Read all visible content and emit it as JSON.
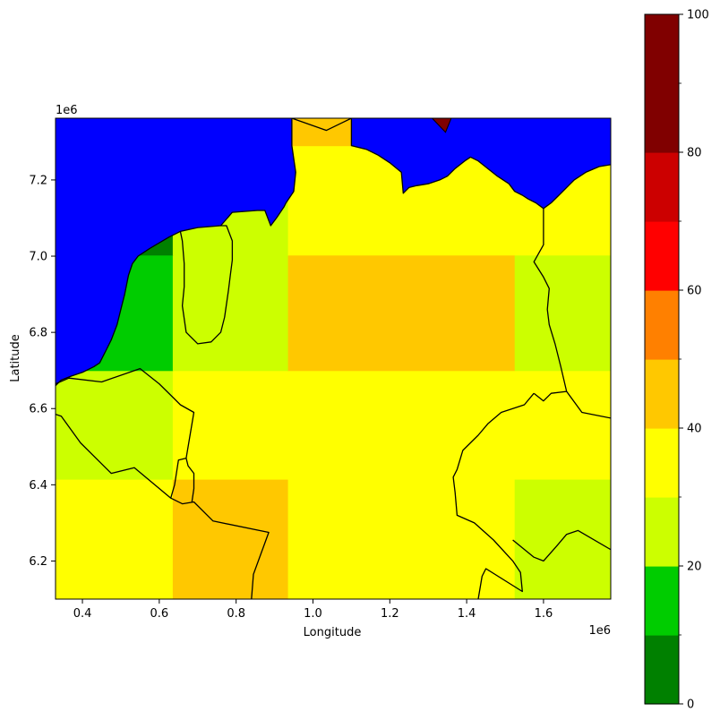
{
  "chart_data": {
    "type": "heatmap",
    "xlabel": "Longitude",
    "ylabel": "Latitude",
    "x_offset_label": "1e6",
    "y_offset_label": "1e6",
    "xlim": [
      0.33,
      1.775
    ],
    "ylim": [
      6.1,
      7.362
    ],
    "x_ticks": [
      0.4,
      0.6,
      0.8,
      1.0,
      1.2,
      1.4,
      1.6
    ],
    "x_tick_labels": [
      "0.4",
      "0.6",
      "0.8",
      "1.0",
      "1.2",
      "1.4",
      "1.6"
    ],
    "y_ticks": [
      6.2,
      6.4,
      6.6,
      6.8,
      7.0,
      7.2
    ],
    "y_tick_labels": [
      "6.2",
      "6.4",
      "6.6",
      "6.8",
      "7.0",
      "7.2"
    ],
    "grid": false,
    "water_color": "#0000ff",
    "border_color": "#000000",
    "colorbar": {
      "range": [
        0,
        100
      ],
      "tick_values": [
        0,
        20,
        40,
        60,
        80,
        100
      ],
      "tick_labels": [
        "0",
        "20",
        "40",
        "60",
        "80",
        "100"
      ],
      "minor_tick_values": [
        10,
        30,
        50,
        70,
        90
      ],
      "bins": [
        {
          "from": 0,
          "to": 10,
          "color": "#008000"
        },
        {
          "from": 10,
          "to": 20,
          "color": "#00cc00"
        },
        {
          "from": 20,
          "to": 30,
          "color": "#ccff00"
        },
        {
          "from": 30,
          "to": 40,
          "color": "#ffff00"
        },
        {
          "from": 40,
          "to": 50,
          "color": "#ffc800"
        },
        {
          "from": 50,
          "to": 60,
          "color": "#ff8000"
        },
        {
          "from": 60,
          "to": 70,
          "color": "#ff0000"
        },
        {
          "from": 70,
          "to": 80,
          "color": "#cc0000"
        },
        {
          "from": 80,
          "to": 90,
          "color": "#800000"
        },
        {
          "from": 90,
          "to": 100,
          "color": "#800000"
        }
      ]
    },
    "cells": [
      {
        "x0": 0.33,
        "x1": 0.635,
        "y0": 6.1,
        "y1": 6.415,
        "color": "#ffff00"
      },
      {
        "x0": 0.635,
        "x1": 0.935,
        "y0": 6.1,
        "y1": 6.415,
        "color": "#ffc800"
      },
      {
        "x0": 0.935,
        "x1": 1.525,
        "y0": 6.1,
        "y1": 6.415,
        "color": "#ffff00"
      },
      {
        "x0": 1.525,
        "x1": 1.775,
        "y0": 6.1,
        "y1": 6.415,
        "color": "#ccff00"
      },
      {
        "x0": 0.33,
        "x1": 0.635,
        "y0": 6.415,
        "y1": 6.7,
        "color": "#ccff00"
      },
      {
        "x0": 0.635,
        "x1": 1.775,
        "y0": 6.415,
        "y1": 6.7,
        "color": "#ffff00"
      },
      {
        "x0": 0.33,
        "x1": 0.635,
        "y0": 6.7,
        "y1": 7.003,
        "color": "#00cc00"
      },
      {
        "x0": 0.635,
        "x1": 0.935,
        "y0": 6.7,
        "y1": 7.003,
        "color": "#ccff00"
      },
      {
        "x0": 0.935,
        "x1": 1.525,
        "y0": 6.7,
        "y1": 7.003,
        "color": "#ffc800"
      },
      {
        "x0": 1.525,
        "x1": 1.775,
        "y0": 6.7,
        "y1": 7.003,
        "color": "#ccff00"
      },
      {
        "x0": 0.33,
        "x1": 0.635,
        "y0": 7.003,
        "y1": 7.29,
        "color": "#008000"
      },
      {
        "x0": 0.635,
        "x1": 0.935,
        "y0": 7.003,
        "y1": 7.29,
        "color": "#ccff00"
      },
      {
        "x0": 0.935,
        "x1": 1.775,
        "y0": 7.003,
        "y1": 7.29,
        "color": "#ffff00"
      },
      {
        "x0": 0.33,
        "x1": 0.945,
        "y0": 7.29,
        "y1": 7.362,
        "color": "#ccff00"
      },
      {
        "x0": 0.945,
        "x1": 1.1,
        "y0": 7.29,
        "y1": 7.362,
        "color": "#ffc800"
      },
      {
        "x0": 1.1,
        "x1": 1.775,
        "y0": 7.29,
        "y1": 7.362,
        "color": "#ffff00"
      }
    ],
    "water_polygons": [
      [
        [
          0.33,
          7.362
        ],
        [
          0.945,
          7.362
        ],
        [
          0.945,
          7.29
        ],
        [
          0.955,
          7.22
        ],
        [
          0.95,
          7.17
        ],
        [
          0.93,
          7.14
        ],
        [
          0.925,
          7.13
        ],
        [
          0.905,
          7.1
        ],
        [
          0.89,
          7.08
        ],
        [
          0.875,
          7.12
        ],
        [
          0.855,
          7.12
        ],
        [
          0.79,
          7.115
        ],
        [
          0.76,
          7.08
        ],
        [
          0.7,
          7.075
        ],
        [
          0.655,
          7.065
        ],
        [
          0.625,
          7.05
        ],
        [
          0.575,
          7.02
        ],
        [
          0.545,
          7.0
        ],
        [
          0.53,
          6.98
        ],
        [
          0.52,
          6.95
        ],
        [
          0.51,
          6.9
        ],
        [
          0.5,
          6.86
        ],
        [
          0.49,
          6.82
        ],
        [
          0.475,
          6.78
        ],
        [
          0.46,
          6.75
        ],
        [
          0.445,
          6.72
        ],
        [
          0.43,
          6.71
        ],
        [
          0.4,
          6.695
        ],
        [
          0.37,
          6.685
        ],
        [
          0.345,
          6.675
        ],
        [
          0.33,
          6.66
        ]
      ],
      [
        [
          1.1,
          7.362
        ],
        [
          1.775,
          7.362
        ],
        [
          1.775,
          7.24
        ],
        [
          1.745,
          7.235
        ],
        [
          1.71,
          7.22
        ],
        [
          1.68,
          7.2
        ],
        [
          1.66,
          7.18
        ],
        [
          1.64,
          7.16
        ],
        [
          1.62,
          7.14
        ],
        [
          1.6,
          7.125
        ],
        [
          1.58,
          7.14
        ],
        [
          1.56,
          7.15
        ],
        [
          1.545,
          7.16
        ],
        [
          1.525,
          7.17
        ],
        [
          1.51,
          7.19
        ],
        [
          1.48,
          7.21
        ],
        [
          1.455,
          7.23
        ],
        [
          1.43,
          7.25
        ],
        [
          1.41,
          7.26
        ],
        [
          1.395,
          7.25
        ],
        [
          1.37,
          7.23
        ],
        [
          1.35,
          7.21
        ],
        [
          1.33,
          7.2
        ],
        [
          1.3,
          7.19
        ],
        [
          1.27,
          7.185
        ],
        [
          1.25,
          7.18
        ],
        [
          1.24,
          7.17
        ],
        [
          1.235,
          7.165
        ],
        [
          1.23,
          7.22
        ],
        [
          1.2,
          7.245
        ],
        [
          1.17,
          7.265
        ],
        [
          1.14,
          7.28
        ],
        [
          1.1,
          7.29
        ]
      ]
    ],
    "red_spike": [
      [
        1.31,
        7.362
      ],
      [
        1.36,
        7.362
      ],
      [
        1.345,
        7.325
      ]
    ],
    "borders": [
      [
        [
          0.33,
          6.66
        ],
        [
          0.345,
          6.675
        ],
        [
          0.37,
          6.685
        ],
        [
          0.4,
          6.695
        ],
        [
          0.43,
          6.71
        ],
        [
          0.445,
          6.72
        ],
        [
          0.46,
          6.75
        ],
        [
          0.475,
          6.78
        ],
        [
          0.49,
          6.82
        ],
        [
          0.5,
          6.86
        ],
        [
          0.51,
          6.9
        ],
        [
          0.52,
          6.95
        ],
        [
          0.53,
          6.98
        ],
        [
          0.545,
          7.0
        ],
        [
          0.575,
          7.02
        ],
        [
          0.625,
          7.05
        ],
        [
          0.655,
          7.065
        ],
        [
          0.7,
          7.075
        ],
        [
          0.76,
          7.08
        ],
        [
          0.79,
          7.115
        ],
        [
          0.855,
          7.12
        ],
        [
          0.875,
          7.12
        ],
        [
          0.89,
          7.08
        ],
        [
          0.905,
          7.1
        ],
        [
          0.925,
          7.13
        ],
        [
          0.93,
          7.14
        ],
        [
          0.95,
          7.17
        ],
        [
          0.955,
          7.22
        ],
        [
          0.945,
          7.29
        ],
        [
          0.945,
          7.362
        ]
      ],
      [
        [
          1.1,
          7.362
        ],
        [
          1.1,
          7.29
        ],
        [
          1.14,
          7.28
        ],
        [
          1.17,
          7.265
        ],
        [
          1.2,
          7.245
        ],
        [
          1.23,
          7.22
        ],
        [
          1.235,
          7.165
        ],
        [
          1.24,
          7.17
        ],
        [
          1.25,
          7.18
        ],
        [
          1.27,
          7.185
        ],
        [
          1.3,
          7.19
        ],
        [
          1.33,
          7.2
        ],
        [
          1.35,
          7.21
        ],
        [
          1.37,
          7.23
        ],
        [
          1.395,
          7.25
        ],
        [
          1.41,
          7.26
        ],
        [
          1.43,
          7.25
        ],
        [
          1.455,
          7.23
        ],
        [
          1.48,
          7.21
        ],
        [
          1.51,
          7.19
        ],
        [
          1.525,
          7.17
        ],
        [
          1.545,
          7.16
        ],
        [
          1.56,
          7.15
        ],
        [
          1.58,
          7.14
        ],
        [
          1.6,
          7.125
        ],
        [
          1.62,
          7.14
        ],
        [
          1.64,
          7.16
        ],
        [
          1.66,
          7.18
        ],
        [
          1.68,
          7.2
        ],
        [
          1.71,
          7.22
        ],
        [
          1.745,
          7.235
        ],
        [
          1.775,
          7.24
        ]
      ],
      [
        [
          0.945,
          7.362
        ],
        [
          1.035,
          7.33
        ],
        [
          1.1,
          7.362
        ]
      ],
      [
        [
          0.33,
          6.585
        ],
        [
          0.345,
          6.58
        ],
        [
          0.395,
          6.51
        ],
        [
          0.475,
          6.43
        ],
        [
          0.535,
          6.445
        ],
        [
          0.63,
          6.365
        ],
        [
          0.66,
          6.35
        ],
        [
          0.69,
          6.355
        ],
        [
          0.74,
          6.305
        ],
        [
          0.885,
          6.275
        ],
        [
          0.845,
          6.165
        ],
        [
          0.84,
          6.1
        ]
      ],
      [
        [
          0.33,
          6.665
        ],
        [
          0.365,
          6.68
        ],
        [
          0.45,
          6.67
        ],
        [
          0.55,
          6.705
        ],
        [
          0.6,
          6.665
        ],
        [
          0.635,
          6.63
        ],
        [
          0.655,
          6.61
        ],
        [
          0.69,
          6.59
        ],
        [
          0.68,
          6.53
        ],
        [
          0.67,
          6.47
        ],
        [
          0.65,
          6.465
        ],
        [
          0.64,
          6.4
        ],
        [
          0.63,
          6.365
        ]
      ],
      [
        [
          0.655,
          7.065
        ],
        [
          0.66,
          7.04
        ],
        [
          0.665,
          6.98
        ],
        [
          0.665,
          6.92
        ],
        [
          0.66,
          6.87
        ],
        [
          0.67,
          6.8
        ],
        [
          0.7,
          6.77
        ],
        [
          0.735,
          6.775
        ],
        [
          0.76,
          6.8
        ],
        [
          0.77,
          6.84
        ],
        [
          0.78,
          6.91
        ],
        [
          0.785,
          6.95
        ],
        [
          0.79,
          6.99
        ],
        [
          0.79,
          7.04
        ],
        [
          0.775,
          7.08
        ],
        [
          0.76,
          7.08
        ]
      ],
      [
        [
          0.67,
          6.47
        ],
        [
          0.675,
          6.45
        ],
        [
          0.69,
          6.43
        ],
        [
          0.69,
          6.39
        ],
        [
          0.685,
          6.355
        ]
      ],
      [
        [
          1.575,
          6.64
        ],
        [
          1.55,
          6.61
        ],
        [
          1.49,
          6.59
        ],
        [
          1.455,
          6.56
        ],
        [
          1.43,
          6.53
        ],
        [
          1.39,
          6.49
        ],
        [
          1.375,
          6.44
        ],
        [
          1.365,
          6.42
        ],
        [
          1.37,
          6.38
        ],
        [
          1.375,
          6.32
        ],
        [
          1.42,
          6.3
        ],
        [
          1.47,
          6.255
        ],
        [
          1.52,
          6.2
        ],
        [
          1.54,
          6.17
        ],
        [
          1.545,
          6.12
        ],
        [
          1.45,
          6.18
        ],
        [
          1.44,
          6.16
        ],
        [
          1.43,
          6.1
        ]
      ],
      [
        [
          1.52,
          6.255
        ],
        [
          1.575,
          6.21
        ],
        [
          1.6,
          6.2
        ],
        [
          1.635,
          6.24
        ],
        [
          1.66,
          6.27
        ],
        [
          1.69,
          6.28
        ],
        [
          1.775,
          6.23
        ]
      ],
      [
        [
          1.6,
          7.125
        ],
        [
          1.6,
          7.06
        ],
        [
          1.6,
          7.03
        ],
        [
          1.575,
          6.985
        ],
        [
          1.6,
          6.945
        ],
        [
          1.615,
          6.915
        ],
        [
          1.61,
          6.86
        ],
        [
          1.615,
          6.82
        ],
        [
          1.63,
          6.77
        ],
        [
          1.645,
          6.71
        ],
        [
          1.66,
          6.645
        ],
        [
          1.7,
          6.59
        ],
        [
          1.775,
          6.575
        ]
      ],
      [
        [
          1.575,
          6.64
        ],
        [
          1.6,
          6.62
        ],
        [
          1.62,
          6.64
        ],
        [
          1.66,
          6.645
        ]
      ]
    ]
  }
}
